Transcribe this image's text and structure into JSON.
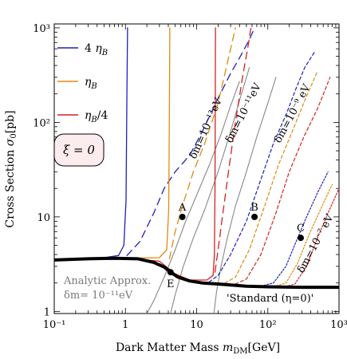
{
  "chart_data": {
    "type": "line",
    "title": "",
    "xlabel": "Dark Matter Mass  m_DM [GeV]",
    "ylabel": "Cross Section  σ_0 [pb]",
    "xscale": "log",
    "yscale": "log",
    "xlim": [
      0.1,
      1000
    ],
    "ylim": [
      0.95,
      1100
    ],
    "x_ticks": [
      0.1,
      1,
      10,
      100,
      1000
    ],
    "x_tick_labels": [
      "10⁻¹",
      "1",
      "10",
      "10²",
      "10³"
    ],
    "y_ticks": [
      1,
      10,
      100,
      1000
    ],
    "y_tick_labels": [
      "1",
      "10",
      "10²",
      "10³"
    ],
    "grid": false,
    "legend": {
      "placement": "top-left",
      "entries": [
        {
          "label": "4 η_B",
          "color": "#1f1fbf"
        },
        {
          "label": "η_B",
          "color": "#e08a10"
        },
        {
          "label": "η_B/4",
          "color": "#d42020"
        }
      ]
    },
    "xi_box": "ξ = 0",
    "note": [
      "Analytic Approx.",
      "δm= 10⁻¹¹eV"
    ],
    "standard_label": "'Standard (η=0)'",
    "curve_labels": [
      "δm=10⁻¹³eV",
      "δm=10⁻¹¹eV",
      "δm=10⁻⁹ eV",
      "δm=10⁻⁷ eV"
    ],
    "points": [
      {
        "label": "A",
        "x": 6.3,
        "y": 10
      },
      {
        "label": "B",
        "x": 65,
        "y": 10
      },
      {
        "label": "C",
        "x": 290,
        "y": 6
      },
      {
        "label": "E",
        "x": 4.3,
        "y": 2.6
      }
    ],
    "series": [
      {
        "name": "'Standard (η=0)'",
        "color": "#000000",
        "style": "thick",
        "x": [
          0.1,
          0.3,
          0.7,
          1.5,
          2.5,
          3.5,
          4.3,
          5.5,
          8,
          12,
          20,
          50,
          100,
          300,
          1000
        ],
        "y": [
          3.5,
          3.6,
          3.65,
          3.6,
          3.3,
          2.95,
          2.6,
          2.3,
          2.1,
          2.0,
          1.95,
          1.85,
          1.82,
          1.8,
          1.8
        ]
      },
      {
        "name": "4 η_B",
        "color": "#1f1fbf",
        "style": "solid",
        "x": [
          0.1,
          0.4,
          0.8,
          0.95,
          1.02,
          1.05,
          1.07
        ],
        "y": [
          3.55,
          3.6,
          3.9,
          5,
          15,
          200,
          1000
        ]
      },
      {
        "name": "η_B",
        "color": "#e08a10",
        "style": "solid",
        "x": [
          0.1,
          1,
          3,
          3.8,
          4.05,
          4.15,
          4.2
        ],
        "y": [
          3.5,
          3.65,
          3.7,
          4.5,
          12,
          150,
          1000
        ]
      },
      {
        "name": "η_B/4",
        "color": "#d42020",
        "style": "solid",
        "x": [
          0.1,
          1,
          3,
          5,
          8,
          14,
          17,
          17.8,
          18.1,
          18.3,
          18.4
        ],
        "y": [
          3.45,
          3.65,
          3.4,
          2.5,
          2.15,
          2.15,
          2.4,
          4,
          20,
          200,
          1000
        ]
      },
      {
        "name": "4 η_B δm=10⁻¹³eV",
        "color": "#1f1fbf",
        "style": "dashed",
        "x": [
          1.05,
          1.6,
          2.5,
          3.5,
          5,
          8,
          12,
          20,
          30,
          40,
          55,
          65
        ],
        "y": [
          3.9,
          5.5,
          11,
          20,
          30,
          45,
          80,
          180,
          330,
          480,
          750,
          1000
        ]
      },
      {
        "name": "η_B δm=10⁻¹³eV",
        "color": "#e08a10",
        "style": "dashed",
        "x": [
          4.15,
          5,
          6.5,
          9,
          13,
          20,
          25,
          30,
          35
        ],
        "y": [
          3.6,
          7,
          14,
          30,
          60,
          160,
          330,
          600,
          1000
        ]
      },
      {
        "name": "η_B/4 δm=10⁻¹³eV",
        "color": "#d42020",
        "style": "dashed",
        "x": [
          18.1,
          20,
          23,
          28,
          35,
          45,
          52,
          58
        ],
        "y": [
          2.6,
          4.5,
          10,
          30,
          100,
          330,
          600,
          1000
        ]
      },
      {
        "name": "4 η_B δm=10⁻⁹eV",
        "color": "#1f1fbf",
        "style": "short-dash",
        "x": [
          15,
          20,
          30,
          50,
          80,
          120,
          180,
          250,
          330,
          450
        ],
        "y": [
          2.05,
          2.4,
          4,
          9,
          25,
          60,
          120,
          230,
          380,
          550
        ]
      },
      {
        "name": "η_B δm=10⁻⁹eV",
        "color": "#e08a10",
        "style": "short-dash",
        "x": [
          25,
          35,
          55,
          90,
          140,
          220,
          330,
          500
        ],
        "y": [
          2.0,
          2.3,
          4.5,
          13,
          35,
          80,
          170,
          350
        ]
      },
      {
        "name": "η_B/4 δm=10⁻⁹eV",
        "color": "#d42020",
        "style": "short-dash",
        "x": [
          35,
          50,
          80,
          130,
          200,
          320,
          500,
          750
        ],
        "y": [
          1.95,
          2.2,
          4,
          11,
          30,
          70,
          140,
          300
        ]
      },
      {
        "name": "4 η_B δm=10⁻⁷eV",
        "color": "#1f1fbf",
        "style": "dotted",
        "x": [
          80,
          120,
          180,
          250,
          350,
          500,
          700
        ],
        "y": [
          1.85,
          2.0,
          3.0,
          5.5,
          10,
          18,
          30
        ]
      },
      {
        "name": "η_B δm=10⁻⁷eV",
        "color": "#e08a10",
        "style": "dotted",
        "x": [
          120,
          180,
          260,
          380,
          550,
          800
        ],
        "y": [
          1.82,
          2.0,
          3.2,
          6.5,
          12,
          22
        ]
      },
      {
        "name": "η_B/4 δm=10⁻⁷eV",
        "color": "#d42020",
        "style": "dotted",
        "x": [
          160,
          240,
          350,
          500,
          700,
          1000
        ],
        "y": [
          1.8,
          1.95,
          3.0,
          6.0,
          11,
          20
        ]
      },
      {
        "name": "Analytic Approx. 1",
        "color": "#888888",
        "style": "thin",
        "x": [
          2.0,
          2.5,
          3.5,
          5,
          7,
          10,
          15,
          22,
          30,
          40
        ],
        "y": [
          0.95,
          1.3,
          2.3,
          4.5,
          9,
          17,
          35,
          75,
          150,
          270
        ]
      },
      {
        "name": "Analytic Approx. 2",
        "color": "#888888",
        "style": "thin",
        "x": [
          4.3,
          5,
          6.5,
          9,
          13,
          20,
          30,
          40,
          55
        ],
        "y": [
          0.95,
          1.5,
          3,
          6,
          12,
          30,
          80,
          170,
          380
        ]
      },
      {
        "name": "Analytic Approx. 3",
        "color": "#888888",
        "style": "thin",
        "x": [
          17.5,
          19,
          22,
          27,
          35,
          50,
          70,
          100,
          130
        ],
        "y": [
          0.95,
          1.6,
          3,
          6,
          13,
          30,
          70,
          160,
          300
        ]
      }
    ]
  }
}
